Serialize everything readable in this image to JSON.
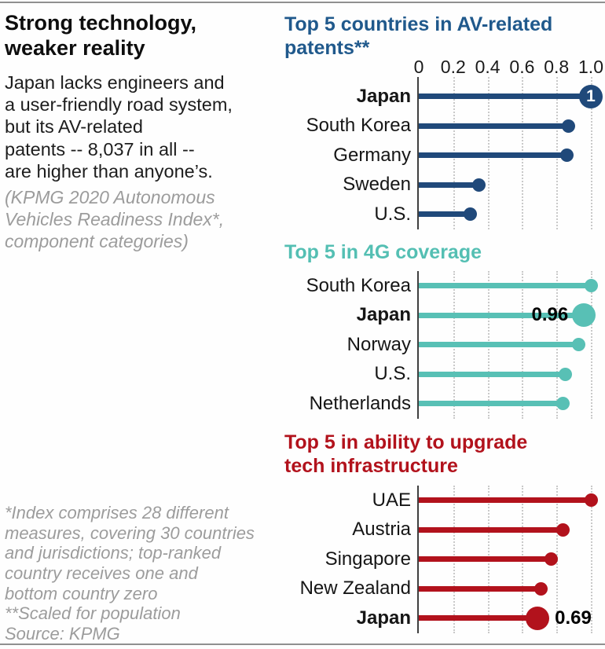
{
  "left_panel": {
    "title_lines": [
      "Strong technology,",
      "weaker reality"
    ],
    "intro_lines": [
      "Japan lacks engineers and",
      "a user-friendly road system,",
      "but its AV-related",
      "patents -- 8,037 in all --",
      "are higher than anyone’s."
    ],
    "index_note_lines": [
      "(KPMG 2020 Autonomous",
      "Vehicles Readiness Index*,",
      "component categories)"
    ],
    "footnote_lines": [
      "*Index comprises 28 different",
      "measures, covering 30 countries",
      "and jurisdictions; top-ranked",
      "country receives one and",
      "bottom country zero",
      "**Scaled for population",
      "Source: KPMG"
    ]
  },
  "chart_data": [
    {
      "type": "bar",
      "variant": "horizontal-lollipop",
      "title": "Top 5 countries in AV-related\npatents**",
      "title_color": "#20598c",
      "color": "#20497a",
      "xlim": [
        0,
        1.0
      ],
      "grid": true,
      "axis": {
        "tick_labels": [
          "0",
          "0.2",
          "0.4",
          "0.6",
          "0.8",
          "1.0"
        ],
        "tick_values": [
          0,
          0.2,
          0.4,
          0.6,
          0.8,
          1.0
        ],
        "show_tick_labels": true
      },
      "categories": [
        "Japan",
        "South Korea",
        "Germany",
        "Sweden",
        "U.S."
      ],
      "values": [
        1.0,
        0.87,
        0.86,
        0.35,
        0.3
      ],
      "rows": [
        {
          "label": "Japan",
          "value": 1.0,
          "bold": true,
          "big_dot": true,
          "dot_text": "1"
        },
        {
          "label": "South Korea",
          "value": 0.87
        },
        {
          "label": "Germany",
          "value": 0.86
        },
        {
          "label": "Sweden",
          "value": 0.35
        },
        {
          "label": "U.S.",
          "value": 0.3
        }
      ]
    },
    {
      "type": "bar",
      "variant": "horizontal-lollipop",
      "title": "Top 5 in 4G coverage",
      "title_color": "#54bfb3",
      "color": "#58c0b5",
      "xlim": [
        0,
        1.0
      ],
      "grid": true,
      "axis": {
        "tick_labels": [
          "0",
          "0.2",
          "0.4",
          "0.6",
          "0.8",
          "1.0"
        ],
        "tick_values": [
          0,
          0.2,
          0.4,
          0.6,
          0.8,
          1.0
        ],
        "show_tick_labels": false
      },
      "categories": [
        "South Korea",
        "Japan",
        "Norway",
        "U.S.",
        "Netherlands"
      ],
      "values": [
        1.0,
        0.96,
        0.93,
        0.85,
        0.84
      ],
      "rows": [
        {
          "label": "South Korea",
          "value": 1.0
        },
        {
          "label": "Japan",
          "value": 0.96,
          "bold": true,
          "big_dot": true,
          "value_label": "0.96",
          "value_label_side": "left"
        },
        {
          "label": "Norway",
          "value": 0.93
        },
        {
          "label": "U.S.",
          "value": 0.85
        },
        {
          "label": "Netherlands",
          "value": 0.84
        }
      ]
    },
    {
      "type": "bar",
      "variant": "horizontal-lollipop",
      "title": "Top 5 in ability to upgrade\ntech infrastructure",
      "title_color": "#b2121c",
      "color": "#b2121c",
      "xlim": [
        0,
        1.0
      ],
      "grid": true,
      "axis": {
        "tick_labels": [
          "0",
          "0.2",
          "0.4",
          "0.6",
          "0.8",
          "1.0"
        ],
        "tick_values": [
          0,
          0.2,
          0.4,
          0.6,
          0.8,
          1.0
        ],
        "show_tick_labels": false
      },
      "categories": [
        "UAE",
        "Austria",
        "Singapore",
        "New Zealand",
        "Japan"
      ],
      "values": [
        1.0,
        0.84,
        0.77,
        0.71,
        0.69
      ],
      "rows": [
        {
          "label": "UAE",
          "value": 1.0
        },
        {
          "label": "Austria",
          "value": 0.84
        },
        {
          "label": "Singapore",
          "value": 0.77
        },
        {
          "label": "New Zealand",
          "value": 0.71
        },
        {
          "label": "Japan",
          "value": 0.69,
          "bold": true,
          "big_dot": true,
          "value_label": "0.69",
          "value_label_side": "right"
        }
      ]
    }
  ]
}
